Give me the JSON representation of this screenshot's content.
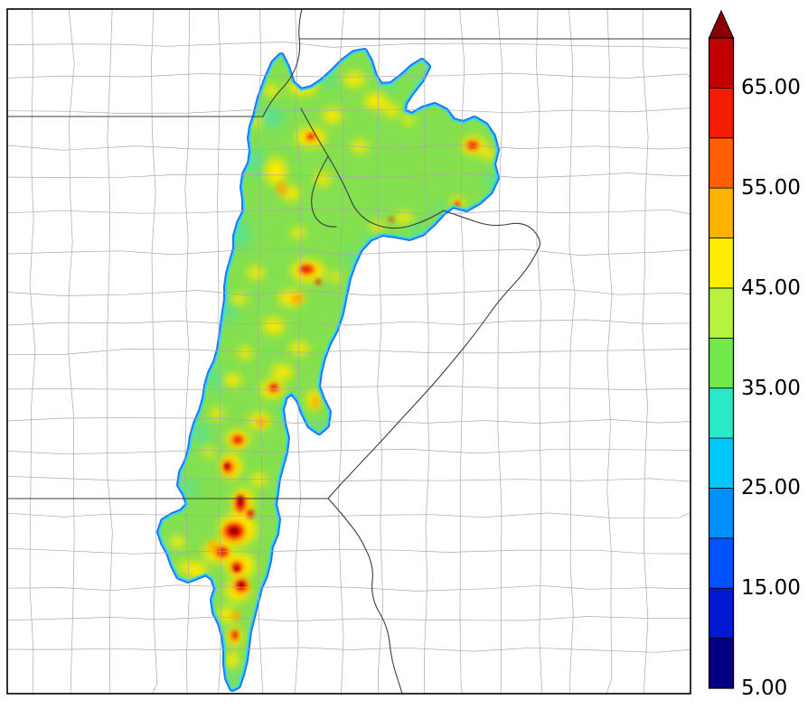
{
  "window": {
    "background": "#ffffff"
  },
  "map": {
    "frame_color": "#000000",
    "county_line_color": "#a9a9a9",
    "state_line_color": "#3c3c3c",
    "basin": {
      "base_color": "#84e04e",
      "rim_outer": "#1e78f0",
      "rim_inner": "#37d8ec",
      "aqua": "#3ae2c4",
      "yellow": "#ffe800",
      "orange": "#ffa500",
      "red": "#ee2200",
      "dark_red": "#9e0000"
    }
  },
  "chart_data": {
    "type": "heatmap",
    "title": "",
    "legend_position": "right",
    "colorbar": {
      "orientation": "vertical",
      "range_min": 5,
      "range_max": 70,
      "segment_step": 5,
      "ticks": [
        "65.00",
        "55.00",
        "45.00",
        "35.00",
        "25.00",
        "15.00",
        "5.00"
      ],
      "tick_values": [
        65,
        55,
        45,
        35,
        25,
        15,
        5
      ],
      "segments": [
        "#050083",
        "#0018cf",
        "#0053ff",
        "#0090ff",
        "#00c8ff",
        "#2be8c8",
        "#72e84a",
        "#b6f23e",
        "#ffee00",
        "#ffb300",
        "#ff5f00",
        "#f21d00",
        "#c10000"
      ],
      "arrow_color": "#8a0000"
    }
  }
}
